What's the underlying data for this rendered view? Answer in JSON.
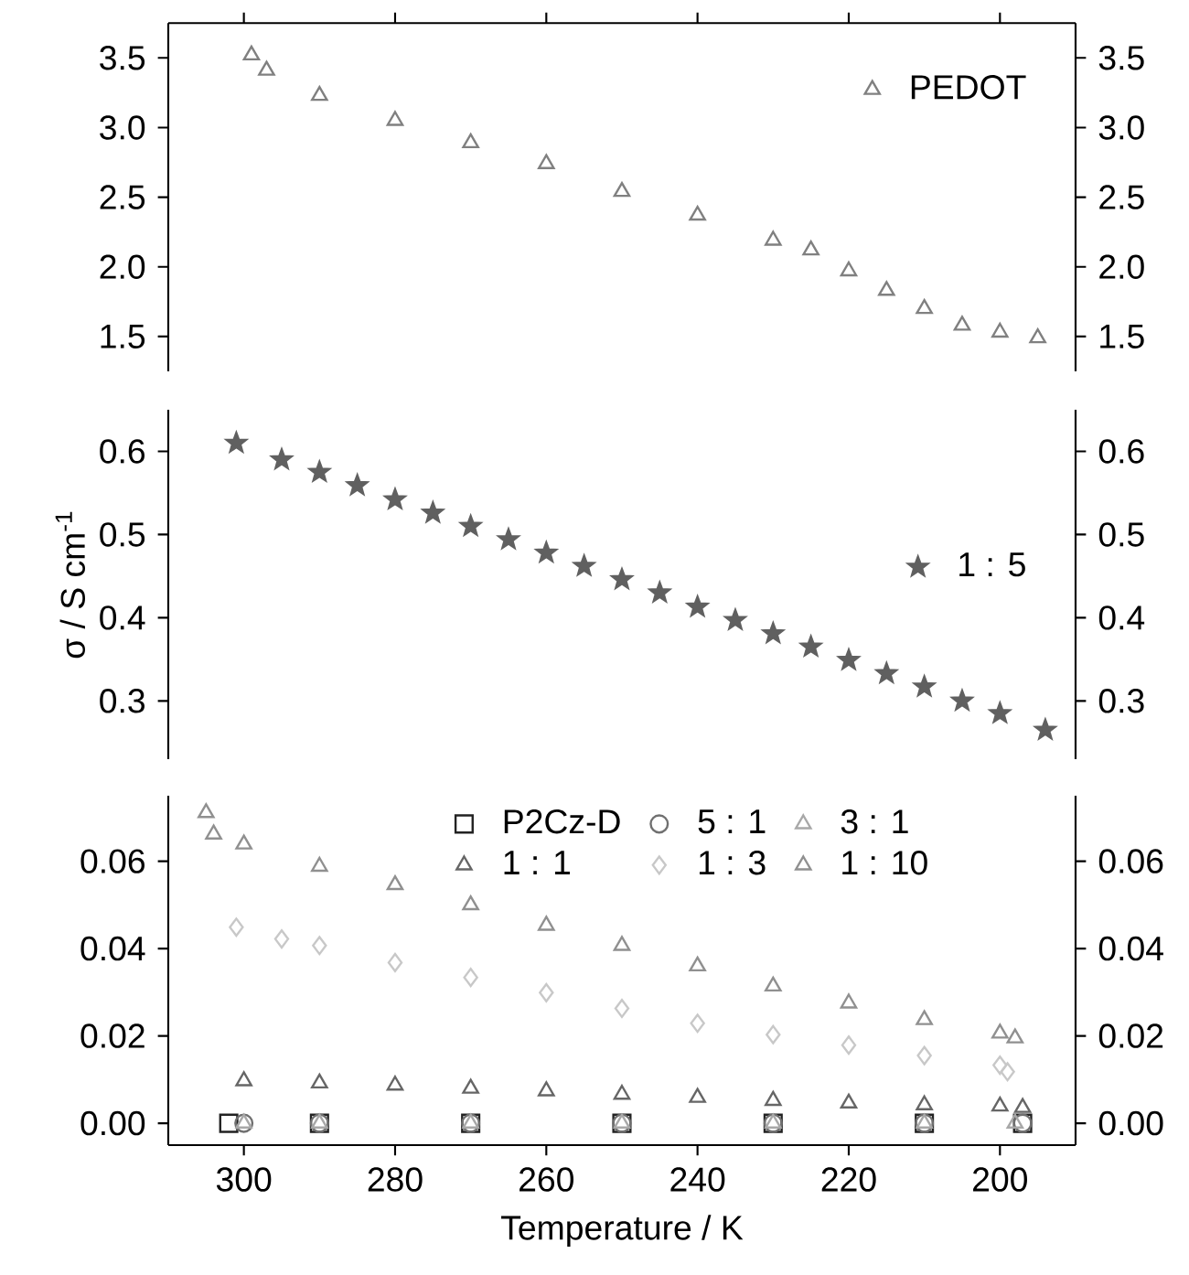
{
  "chart_data": [
    {
      "type": "scatter",
      "xlim": [
        310,
        190
      ],
      "xticks": [
        300,
        280,
        260,
        240,
        220,
        200
      ],
      "ylim": [
        1.25,
        3.75
      ],
      "yticks": [
        1.5,
        {
          "value": 2,
          "label": "2.0"
        },
        2.5,
        {
          "value": 3,
          "label": "3.0"
        },
        3.5
      ],
      "y2lim": [
        1.25,
        3.75
      ],
      "y2ticks": [
        1.5,
        {
          "value": 2,
          "label": "2.0"
        },
        2.5,
        {
          "value": 3,
          "label": "3.0"
        },
        3.5
      ],
      "tick_labels": "y",
      "legend": "top right",
      "series": [
        {
          "name": "PEDOT",
          "color": "#808080",
          "marker": "triangle",
          "x": [
            299,
            297,
            290,
            280,
            270,
            260,
            250,
            240,
            230,
            225,
            220,
            215,
            210,
            205,
            200,
            195
          ],
          "values": [
            3.52,
            3.41,
            3.23,
            3.05,
            2.89,
            2.74,
            2.54,
            2.37,
            2.19,
            2.12,
            1.97,
            1.83,
            1.7,
            1.58,
            1.53,
            1.49
          ]
        }
      ]
    },
    {
      "type": "scatter",
      "xlim": [
        310,
        190
      ],
      "ylim": [
        0.23,
        0.65
      ],
      "yticks": [
        0.3,
        0.4,
        0.5,
        0.6
      ],
      "y2lim": [
        0.23,
        0.65
      ],
      "y2ticks": [
        0.3,
        0.4,
        0.5,
        0.6
      ],
      "tick_labels": "y",
      "legend": "right",
      "ylabel": "σ / S cm$^{-1}$",
      "series": [
        {
          "name": "1 : 5",
          "color": "#606060",
          "marker": "star",
          "x": [
            301,
            295,
            290,
            285,
            280,
            275,
            270,
            265,
            260,
            255,
            250,
            245,
            240,
            235,
            230,
            225,
            220,
            215,
            210,
            205,
            200,
            194
          ],
          "values": [
            0.61,
            0.59,
            0.575,
            0.559,
            0.542,
            0.526,
            0.51,
            0.494,
            0.478,
            0.462,
            0.446,
            0.43,
            0.413,
            0.397,
            0.381,
            0.365,
            0.349,
            0.333,
            0.317,
            0.3,
            0.285,
            0.265
          ]
        }
      ]
    },
    {
      "type": "scatter",
      "xlim": [
        310,
        190
      ],
      "xticks": [
        300,
        280,
        260,
        240,
        220,
        200
      ],
      "ylim": [
        -0.005,
        0.075
      ],
      "yticks": [
        {
          "value": 0,
          "label": "0.00"
        },
        0.02,
        0.04,
        0.06
      ],
      "y2lim": [
        -0.005,
        0.075
      ],
      "y2ticks": [
        {
          "value": 0,
          "label": "0.00"
        },
        0.02,
        0.04,
        0.06
      ],
      "legend": "top",
      "xlabel": "Temperature / K",
      "series": [
        {
          "name": "P2Cz-D",
          "color": "#222222",
          "marker": "square",
          "x": [
            302,
            290,
            270,
            250,
            230,
            210,
            197
          ],
          "values": [
            0,
            0,
            0,
            0,
            0,
            0,
            0
          ]
        },
        {
          "name": "5 : 1",
          "color": "#707070",
          "marker": "circle",
          "x": [
            300,
            290,
            270,
            250,
            230,
            210,
            197
          ],
          "values": [
            0,
            0,
            0,
            0,
            0,
            0,
            0
          ]
        },
        {
          "name": "3 : 1",
          "color": "#a8a8a8",
          "marker": "triangle",
          "x": [
            300,
            290,
            270,
            250,
            230,
            210,
            198
          ],
          "values": [
            0,
            0,
            0,
            0,
            0,
            0,
            0
          ]
        },
        {
          "name": "1 : 1",
          "color": "#666666",
          "marker": "triangle",
          "x": [
            300,
            290,
            280,
            270,
            260,
            250,
            240,
            230,
            220,
            210,
            200,
            197
          ],
          "values": [
            0.0097,
            0.0092,
            0.0087,
            0.008,
            0.0074,
            0.0066,
            0.0059,
            0.0052,
            0.0046,
            0.0042,
            0.0039,
            0.0036
          ]
        },
        {
          "name": "1 : 3",
          "color": "#c8c8c8",
          "marker": "diamond",
          "x": [
            301,
            295,
            290,
            280,
            270,
            260,
            250,
            240,
            230,
            220,
            210,
            200,
            199
          ],
          "values": [
            0.0449,
            0.0422,
            0.0407,
            0.0368,
            0.0334,
            0.0299,
            0.0263,
            0.0229,
            0.0203,
            0.0179,
            0.0155,
            0.0133,
            0.0118
          ]
        },
        {
          "name": "1 : 10",
          "color": "#909090",
          "marker": "triangle",
          "x": [
            305,
            304,
            300,
            290,
            280,
            270,
            260,
            250,
            240,
            230,
            220,
            210,
            200,
            198
          ],
          "values": [
            0.0711,
            0.0662,
            0.0639,
            0.0588,
            0.0546,
            0.05,
            0.0453,
            0.0407,
            0.036,
            0.0314,
            0.0275,
            0.0237,
            0.0206,
            0.0195
          ]
        }
      ]
    }
  ]
}
